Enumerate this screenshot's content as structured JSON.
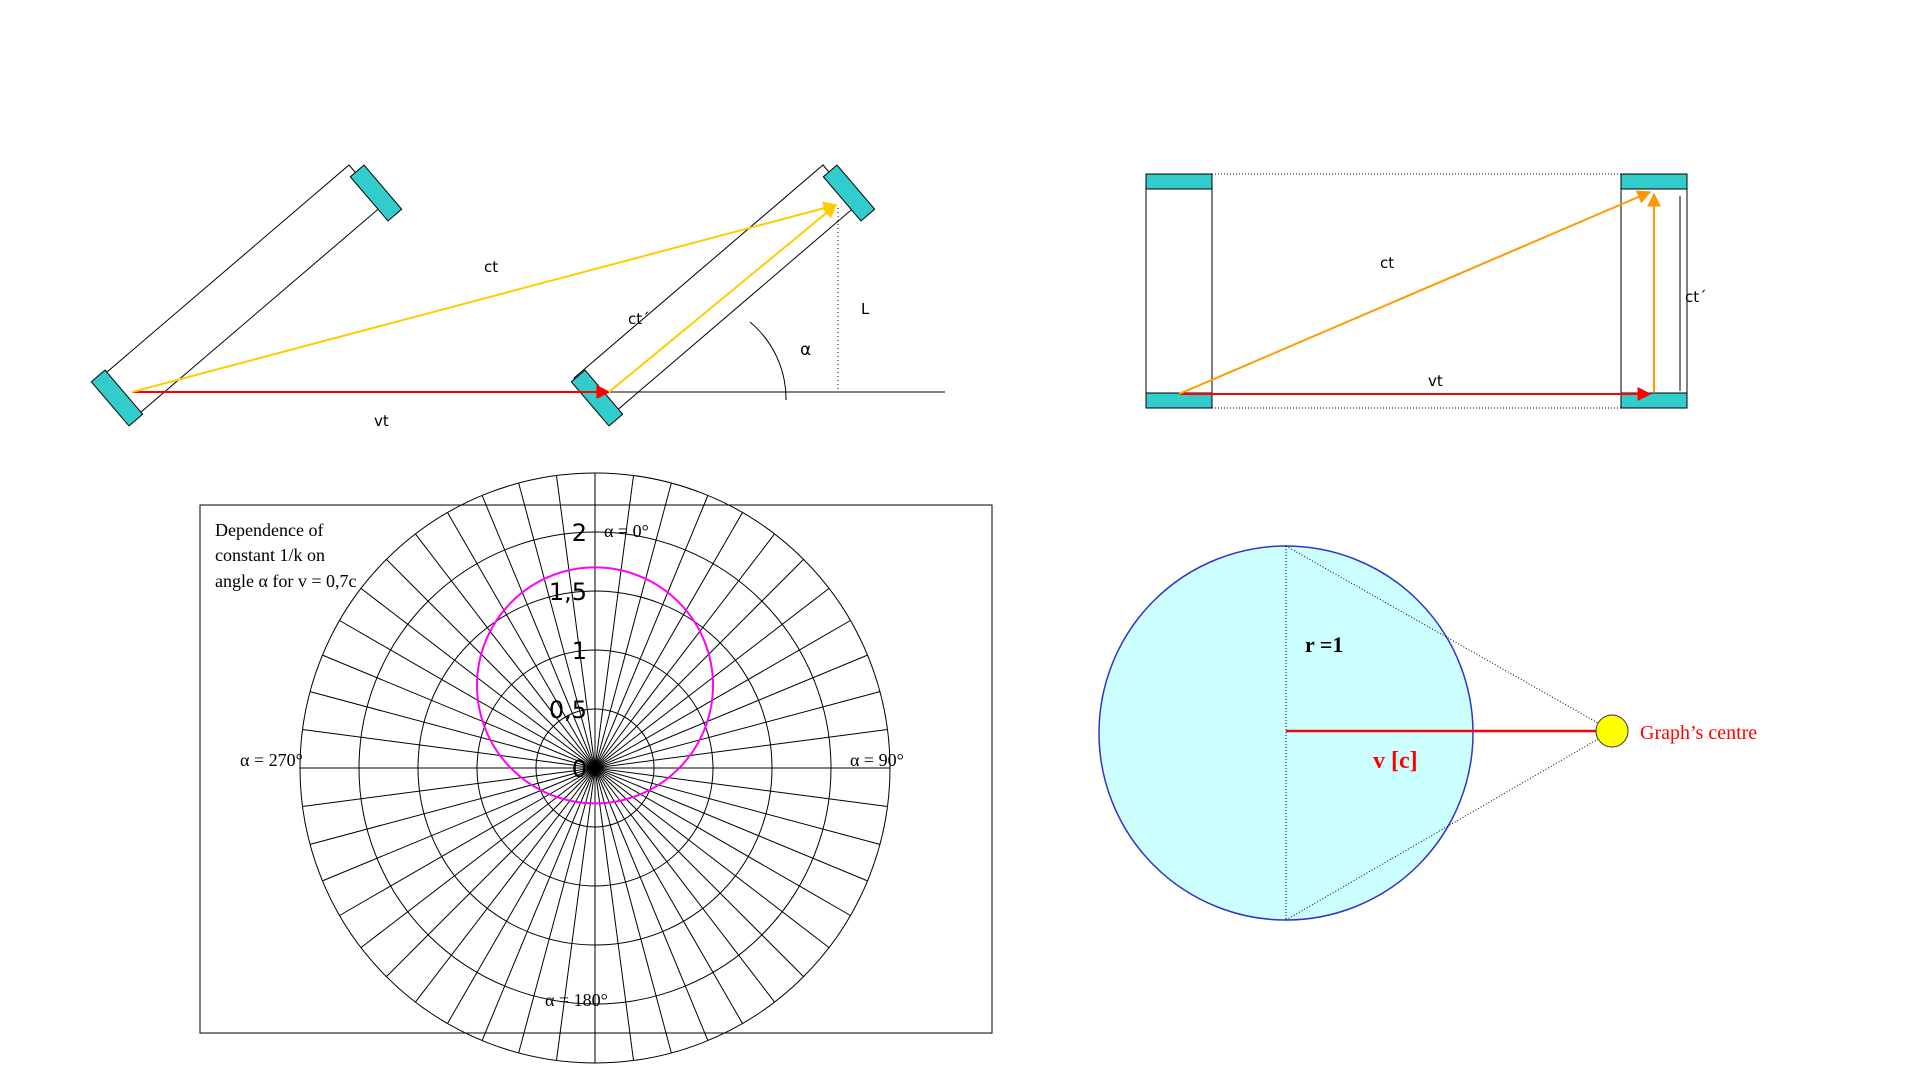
{
  "colors": {
    "mirror": "#33CCCC",
    "light_path_yellow": "#FFCC00",
    "light_path_orange": "#FF9900",
    "motion_red": "#FF0000",
    "polar_curve": "#FF00FF",
    "sphere_fill": "#CCFFFF",
    "sphere_border": "#3333CC",
    "centre_fill": "#FFFF00"
  },
  "diagram_tilted": {
    "label_ct": "ct",
    "label_ct_prime": "ct´",
    "label_vt": "vt",
    "label_L": "L",
    "label_alpha": "α"
  },
  "diagram_upright": {
    "label_ct": "ct",
    "label_ct_prime": "ct´",
    "label_vt": "vt"
  },
  "polar_chart": {
    "caption_line1": "Dependence of",
    "caption_line2": "constant 1/k on",
    "caption_line3": "angle α for v = 0,7c",
    "label_top": "α = 0°",
    "label_right": "α = 90°",
    "label_bottom": "α = 180°",
    "label_left": "α = 270°",
    "radial_ticks": [
      "0",
      "0,5",
      "1",
      "1,5",
      "2"
    ]
  },
  "chart_data": {
    "type": "line",
    "projection": "polar",
    "r_ticks": [
      0,
      0.5,
      1,
      1.5,
      2
    ],
    "r_max": 2.5,
    "spokes": 48,
    "series": [
      {
        "name": "",
        "type": "circle",
        "center_r": 0.7,
        "center_angle_deg": 0,
        "radius": 1.0
      }
    ]
  },
  "diagram_sphere": {
    "label_radius": "r =1",
    "label_velocity": "v [c]",
    "label_centre": "Graph’s centre"
  }
}
